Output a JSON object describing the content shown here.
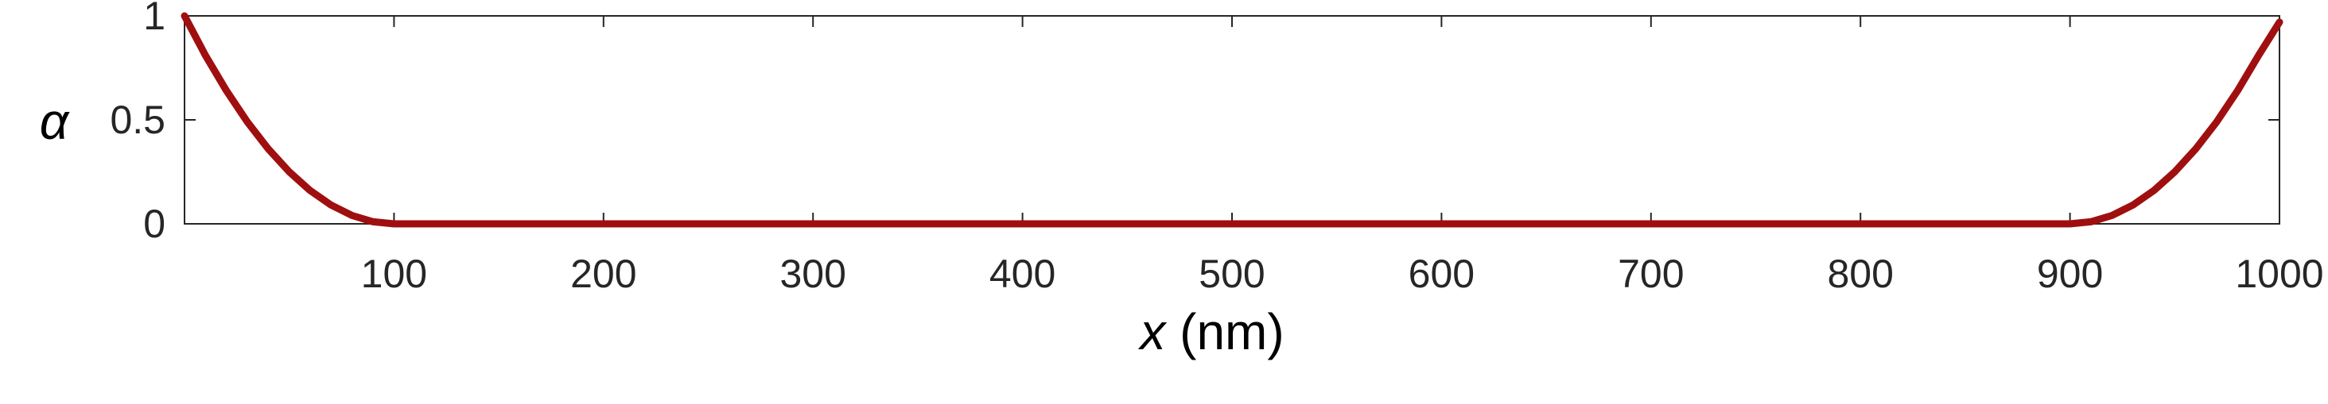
{
  "chart_data": {
    "type": "line",
    "title": "",
    "xlabel_var": "x",
    "xlabel_unit": " (nm)",
    "ylabel": "α",
    "xlim": [
      0,
      1000
    ],
    "ylim": [
      0,
      1
    ],
    "grid": false,
    "legend": "none",
    "xticks": [
      100,
      200,
      300,
      400,
      500,
      600,
      700,
      800,
      900,
      1000
    ],
    "xtick_labels": [
      "100",
      "200",
      "300",
      "400",
      "500",
      "600",
      "700",
      "800",
      "900",
      "1000"
    ],
    "yticks": [
      0,
      0.5,
      1
    ],
    "ytick_labels": [
      "0",
      "0.5",
      "1"
    ],
    "series": [
      {
        "color": "#a00f0f",
        "x": [
          0,
          10,
          20,
          30,
          40,
          50,
          60,
          70,
          80,
          90,
          100,
          900,
          910,
          920,
          930,
          940,
          950,
          960,
          970,
          980,
          990,
          1000
        ],
        "y": [
          1.0,
          0.81,
          0.64,
          0.49,
          0.36,
          0.25,
          0.16,
          0.09,
          0.04,
          0.01,
          0.0,
          0.0,
          0.01,
          0.04,
          0.09,
          0.16,
          0.25,
          0.36,
          0.49,
          0.64,
          0.81,
          0.97
        ]
      }
    ]
  }
}
